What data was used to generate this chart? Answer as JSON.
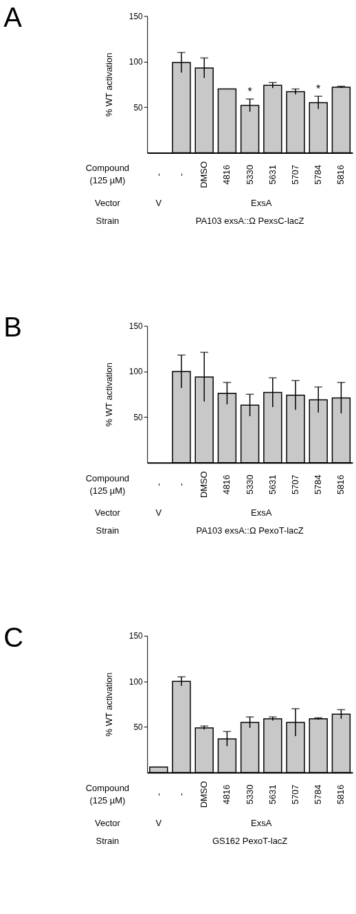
{
  "chart_data": [
    {
      "type": "bar",
      "title": "A",
      "ylabel": "% WT activation",
      "categories": [
        "-",
        "-",
        "DMSO",
        "4816",
        "5330",
        "5631",
        "5707",
        "5784",
        "5816"
      ],
      "values": [
        null,
        99,
        93,
        70,
        52,
        74,
        67,
        55,
        72
      ],
      "errors": [
        null,
        11,
        11,
        null,
        7,
        3,
        3,
        7,
        1
      ],
      "color": "#c8c8c8",
      "ylim": [
        0,
        150
      ],
      "yticks": [
        50,
        100,
        150
      ],
      "grid": false,
      "annotations": [
        "Compound (125 µM)",
        "Vector",
        "V",
        "ExsA",
        "Strain",
        "PA103 exsA::Ω PexsC-lacZ",
        {
          "text": "*",
          "x": "5330",
          "y": 52
        },
        {
          "text": "*",
          "x": "5784",
          "y": 55
        }
      ]
    },
    {
      "type": "bar",
      "title": "B",
      "ylabel": "% WT activation",
      "categories": [
        "-",
        "-",
        "DMSO",
        "4816",
        "5330",
        "5631",
        "5707",
        "5784",
        "5816"
      ],
      "values": [
        null,
        100,
        94,
        76,
        63,
        77,
        74,
        69,
        71
      ],
      "errors": [
        null,
        18,
        27,
        12,
        12,
        16,
        16,
        14,
        17
      ],
      "color": "#c8c8c8",
      "ylim": [
        0,
        150
      ],
      "yticks": [
        50,
        100,
        150
      ],
      "grid": false,
      "annotations": [
        "Compound (125 µM)",
        "Vector",
        "V",
        "ExsA",
        "Strain",
        "PA103 exsA::Ω PexoT-lacZ"
      ]
    },
    {
      "type": "bar",
      "title": "C",
      "ylabel": "% WT activation",
      "categories": [
        "-",
        "-",
        "DMSO",
        "4816",
        "5330",
        "5631",
        "5707",
        "5784",
        "5816"
      ],
      "values": [
        6,
        100,
        49,
        37,
        55,
        59,
        55,
        59,
        64
      ],
      "errors": [
        null,
        5,
        2,
        8,
        6,
        2,
        15,
        1,
        5
      ],
      "color": "#c8c8c8",
      "ylim": [
        0,
        150
      ],
      "yticks": [
        50,
        100,
        150
      ],
      "grid": false,
      "annotations": [
        "Compound (125 µM)",
        "Vector",
        "V",
        "ExsA",
        "Strain",
        "GS162 PexoT-lacZ"
      ]
    }
  ]
}
